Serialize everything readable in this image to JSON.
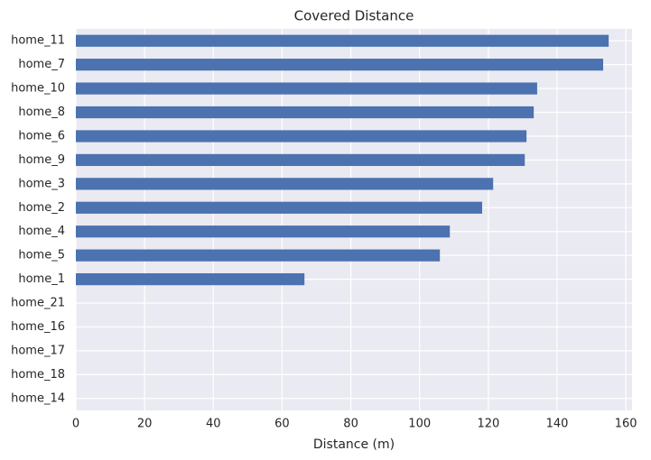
{
  "chart_data": {
    "type": "barh",
    "title": "Covered Distance",
    "xlabel": "Distance (m)",
    "categories": [
      "home_11",
      "home_7",
      "home_10",
      "home_8",
      "home_6",
      "home_9",
      "home_3",
      "home_2",
      "home_4",
      "home_5",
      "home_1",
      "home_21",
      "home_16",
      "home_17",
      "home_18",
      "home_14"
    ],
    "values": [
      155,
      153.4,
      134.2,
      133.2,
      131.1,
      130.6,
      121.4,
      118.2,
      108.8,
      105.9,
      66.5,
      0,
      0,
      0,
      0,
      0
    ],
    "color": "#4c72b0",
    "xlim": [
      0,
      161.8
    ],
    "xticks": [
      0,
      20,
      40,
      60,
      80,
      100,
      120,
      140,
      160
    ],
    "grid": true
  }
}
